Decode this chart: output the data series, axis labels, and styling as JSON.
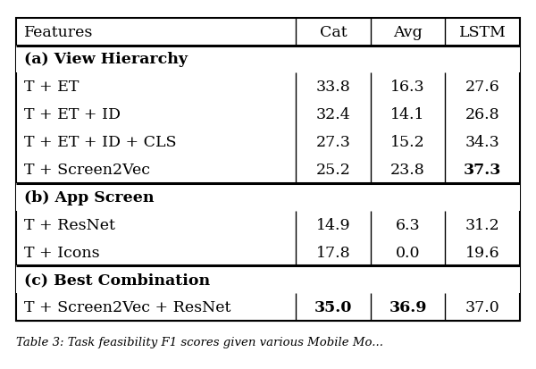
{
  "headers": [
    "Features",
    "Cat",
    "Avg",
    "LSTM"
  ],
  "sections": [
    {
      "section_header": "(a) View Hierarchy",
      "rows": [
        {
          "feature": "T + ET",
          "cat": "33.8",
          "avg": "16.3",
          "lstm": "27.6",
          "bold": []
        },
        {
          "feature": "T + ET + ID",
          "cat": "32.4",
          "avg": "14.1",
          "lstm": "26.8",
          "bold": []
        },
        {
          "feature": "T + ET + ID + CLS",
          "cat": "27.3",
          "avg": "15.2",
          "lstm": "34.3",
          "bold": []
        },
        {
          "feature": "T + Screen2Vec",
          "cat": "25.2",
          "avg": "23.8",
          "lstm": "37.3",
          "bold": [
            "lstm"
          ]
        }
      ]
    },
    {
      "section_header": "(b) App Screen",
      "rows": [
        {
          "feature": "T + ResNet",
          "cat": "14.9",
          "avg": "6.3",
          "lstm": "31.2",
          "bold": []
        },
        {
          "feature": "T + Icons",
          "cat": "17.8",
          "avg": "0.0",
          "lstm": "19.6",
          "bold": []
        }
      ]
    },
    {
      "section_header": "(c) Best Combination",
      "rows": [
        {
          "feature": "T + Screen2Vec + ResNet",
          "cat": "35.0",
          "avg": "36.9",
          "lstm": "37.0",
          "bold": [
            "cat",
            "avg"
          ]
        }
      ]
    }
  ],
  "caption": "Table 3: Task feasibility F1 scores given various Mobile Mo...",
  "fig_width": 6.0,
  "fig_height": 4.14,
  "dpi": 100,
  "font_size": 12.5,
  "caption_font_size": 9.5,
  "bg_color": "#ffffff"
}
